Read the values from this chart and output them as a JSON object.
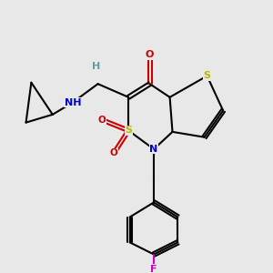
{
  "bg_color": "#e8e8e8",
  "fig_width": 3.0,
  "fig_height": 3.0,
  "dpi": 100,
  "bond_color": "#000000",
  "bond_lw": 1.5,
  "colors": {
    "C": "#000000",
    "S": "#b8b800",
    "N": "#0000cc",
    "O": "#cc0000",
    "F": "#cc00cc",
    "H": "#5f9ea0"
  },
  "font_size": 7.5
}
